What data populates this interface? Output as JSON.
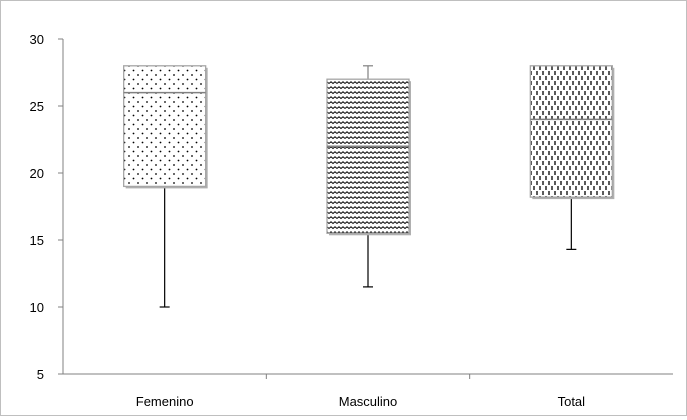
{
  "chart_data": {
    "type": "box",
    "title": "",
    "xlabel": "",
    "ylabel": "",
    "ylim": [
      5,
      30
    ],
    "yticks": [
      5,
      10,
      15,
      20,
      25,
      30
    ],
    "grid": false,
    "categories": [
      "Femenino",
      "Masculino",
      "Total"
    ],
    "series": [
      {
        "category": "Femenino",
        "min": 10,
        "q1": 19,
        "median": 26,
        "q3": 28,
        "max": 28,
        "pattern": "dots"
      },
      {
        "category": "Masculino",
        "min": 11.5,
        "q1": 15.5,
        "median": 22,
        "q3": 27,
        "max": 28,
        "pattern": "waves"
      },
      {
        "category": "Total",
        "min": 14.3,
        "q1": 18.2,
        "median": 24,
        "q3": 28,
        "max": 28,
        "pattern": "vertical-dashes"
      }
    ]
  }
}
